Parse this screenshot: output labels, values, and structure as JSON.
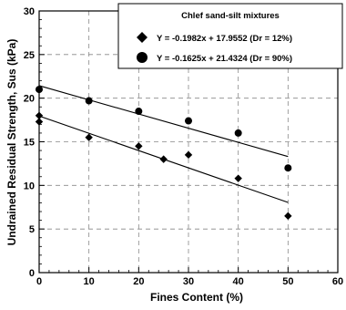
{
  "chart_data": {
    "type": "scatter",
    "title": "",
    "xlabel": "Fines Content (%)",
    "ylabel": "Undrained Residual Strength, Sus (kPa)",
    "xlim": [
      0,
      60
    ],
    "ylim": [
      0,
      30
    ],
    "x_ticks": [
      0,
      10,
      20,
      30,
      40,
      50,
      60
    ],
    "y_ticks": [
      0,
      5,
      10,
      15,
      20,
      25,
      30
    ],
    "grid": true,
    "legend": {
      "title": "Chlef sand-silt mixtures",
      "placement": "top-right"
    },
    "series": [
      {
        "name": "Y = -0.1982x + 17.9552 (Dr = 12%)",
        "marker": "diamond",
        "x": [
          0,
          0,
          10,
          20,
          25,
          30,
          40,
          50
        ],
        "y": [
          18.0,
          17.3,
          15.5,
          14.5,
          13.0,
          13.5,
          10.8,
          6.5
        ],
        "fit": {
          "slope": -0.1982,
          "intercept": 17.9552
        }
      },
      {
        "name": "Y = -0.1625x + 21.4324 (Dr = 90%)",
        "marker": "circle",
        "x": [
          0,
          10,
          20,
          30,
          40,
          50
        ],
        "y": [
          21.0,
          19.7,
          18.5,
          17.4,
          16.0,
          12.0
        ],
        "fit": {
          "slope": -0.1625,
          "intercept": 21.4324
        }
      }
    ]
  }
}
